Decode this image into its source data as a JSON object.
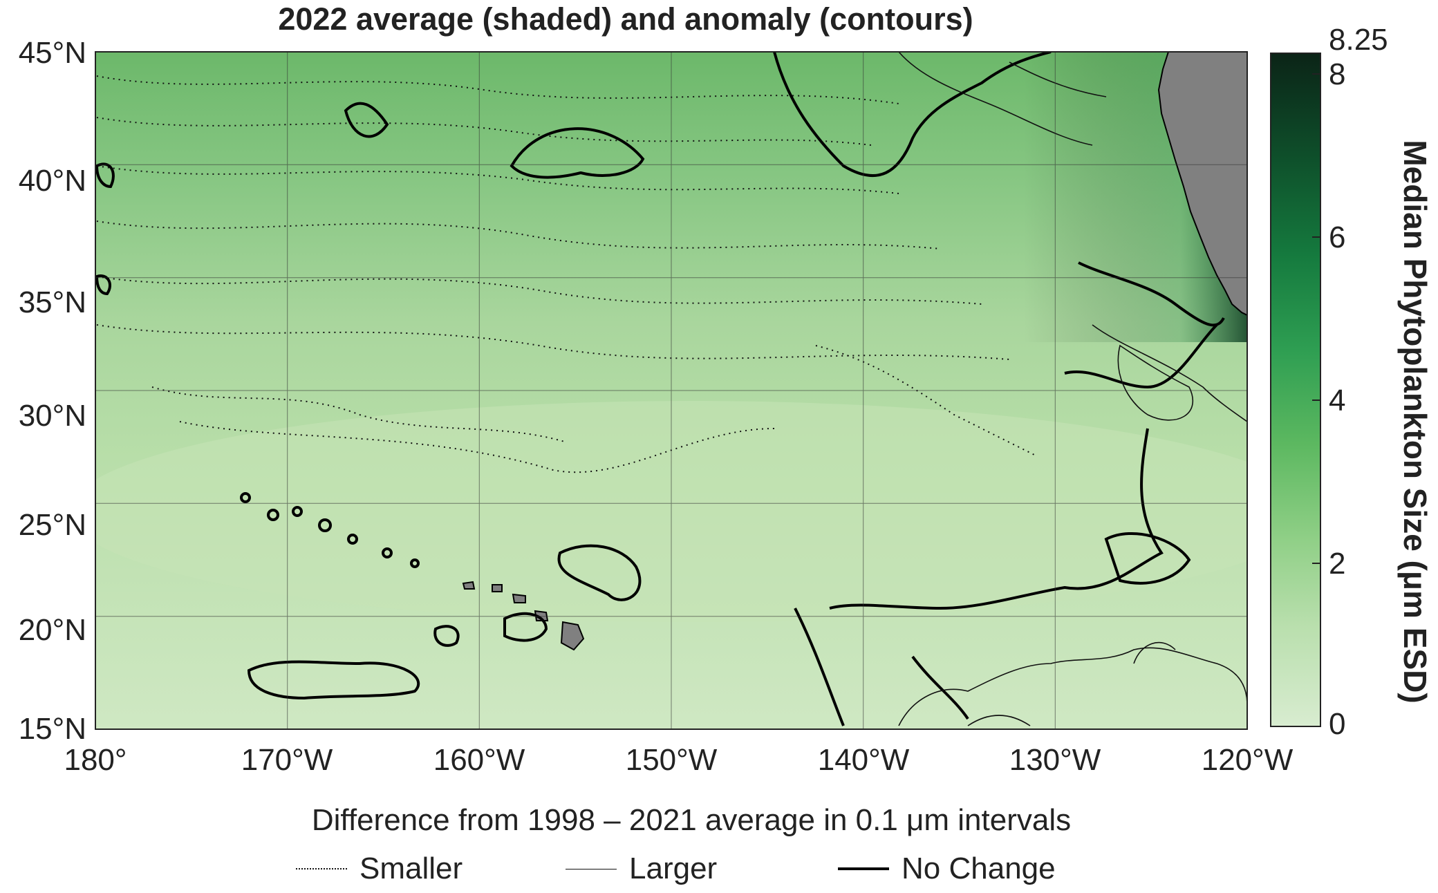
{
  "title": "2022 average (shaded) and anomaly (contours)",
  "map": {
    "lat_labels": [
      "45°N",
      "40°N",
      "35°N",
      "30°N",
      "25°N",
      "20°N",
      "15°N"
    ],
    "lat_values": [
      45,
      40,
      35,
      30,
      25,
      20,
      15
    ],
    "lon_labels": [
      "180°",
      "170°W",
      "160°W",
      "150°W",
      "140°W",
      "130°W",
      "120°W"
    ],
    "lon_values": [
      -180,
      -170,
      -160,
      -150,
      -140,
      -130,
      -120
    ],
    "extent": {
      "lon": [
        -180,
        -120
      ],
      "lat": [
        15,
        45
      ]
    },
    "land_color": "#808080",
    "grid": true
  },
  "colorbar": {
    "title": "Median Phytoplankton Size (μm ESD)",
    "ticks": [
      "8.25",
      "8",
      "6",
      "4",
      "2",
      "0"
    ],
    "tick_values": [
      8.25,
      8,
      6,
      4,
      2,
      0
    ],
    "range": [
      0,
      8.25
    ],
    "colors": [
      "#d8ecd0",
      "#b9dfad",
      "#8fcf86",
      "#5cb860",
      "#2e9e52",
      "#157a3e",
      "#0e4e2a",
      "#0b2417"
    ]
  },
  "legend": {
    "subtitle": "Difference from 1998 – 2021 average in 0.1 μm intervals",
    "items": [
      {
        "label": "Smaller",
        "style": "dotted"
      },
      {
        "label": "Larger",
        "style": "thin"
      },
      {
        "label": "No Change",
        "style": "thick"
      }
    ]
  }
}
